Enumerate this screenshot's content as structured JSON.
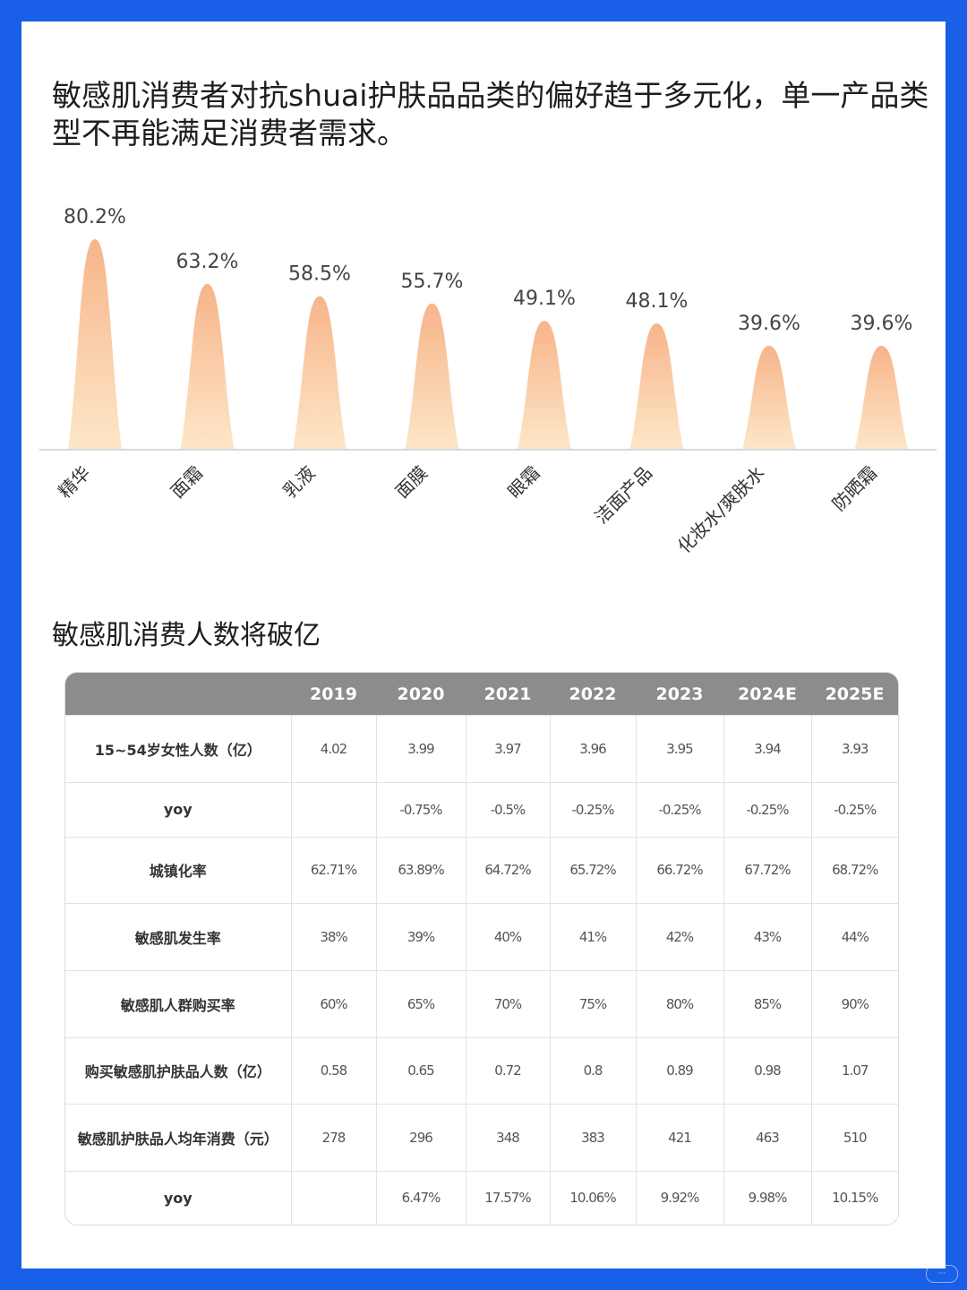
{
  "headline": "敏感肌消费者对抗shuai护肤品品类的偏好趋于多元化，单一产品类型不再能满足消费者需求。",
  "section_title": "敏感肌消费人数将破亿",
  "colors": {
    "frame": "#1a5fe8",
    "peak_top": "#f7b48a",
    "peak_bottom": "#fde7c8",
    "header_bg": "#8c8c8c"
  },
  "chart_data": {
    "type": "bar",
    "categories": [
      "精华",
      "面霜",
      "乳液",
      "面膜",
      "眼霜",
      "洁面产品",
      "化妆水/爽肤水",
      "防晒霜"
    ],
    "values": [
      80.2,
      63.2,
      58.5,
      55.7,
      49.1,
      48.1,
      39.6,
      39.6
    ],
    "data_labels": [
      "80.2%",
      "63.2%",
      "58.5%",
      "55.7%",
      "49.1%",
      "48.1%",
      "39.6%",
      "39.6%"
    ],
    "ylim": [
      0,
      80.2
    ],
    "grid": false,
    "legend": "none"
  },
  "table": {
    "columns": [
      "",
      "2019",
      "2020",
      "2021",
      "2022",
      "2023",
      "2024E",
      "2025E"
    ],
    "rows": [
      [
        "15~54岁女性人数（亿）",
        "4.02",
        "3.99",
        "3.97",
        "3.96",
        "3.95",
        "3.94",
        "3.93"
      ],
      [
        "yoy",
        "",
        "-0.75%",
        "-0.5%",
        "-0.25%",
        "-0.25%",
        "-0.25%",
        "-0.25%"
      ],
      [
        "城镇化率",
        "62.71%",
        "63.89%",
        "64.72%",
        "65.72%",
        "66.72%",
        "67.72%",
        "68.72%"
      ],
      [
        "敏感肌发生率",
        "38%",
        "39%",
        "40%",
        "41%",
        "42%",
        "43%",
        "44%"
      ],
      [
        "敏感肌人群购买率",
        "60%",
        "65%",
        "70%",
        "75%",
        "80%",
        "85%",
        "90%"
      ],
      [
        "购买敏感肌护肤品人数（亿）",
        "0.58",
        "0.65",
        "0.72",
        "0.8",
        "0.89",
        "0.98",
        "1.07"
      ],
      [
        "敏感肌护肤品人均年消费（元）",
        "278",
        "296",
        "348",
        "383",
        "421",
        "463",
        "510"
      ],
      [
        "yoy",
        "",
        "6.47%",
        "17.57%",
        "10.06%",
        "9.92%",
        "9.98%",
        "10.15%"
      ]
    ]
  }
}
